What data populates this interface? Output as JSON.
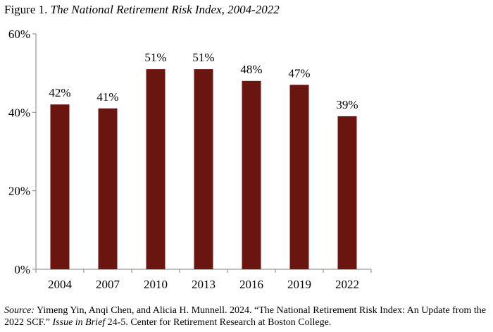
{
  "figure": {
    "label": "Figure 1.",
    "title": "The National Retirement Risk Index, 2004-2022"
  },
  "chart_data": {
    "type": "bar",
    "title": "The National Retirement Risk Index, 2004-2022",
    "xlabel": "",
    "ylabel": "",
    "categories": [
      "2004",
      "2007",
      "2010",
      "2013",
      "2016",
      "2019",
      "2022"
    ],
    "values": [
      42,
      41,
      51,
      51,
      48,
      47,
      39
    ],
    "data_labels": [
      "42%",
      "41%",
      "51%",
      "51%",
      "48%",
      "47%",
      "39%"
    ],
    "ylim": [
      0,
      60
    ],
    "yticks": [
      0,
      20,
      40,
      60
    ],
    "ytick_labels": [
      "0%",
      "20%",
      "40%",
      "60%"
    ],
    "grid": false,
    "legend": "none",
    "bar_color": "#6b1510"
  },
  "source": {
    "label": "Source:",
    "text1": " Yimeng Yin, Anqi Chen, and Alicia H. Munnell. 2024. “The National Retirement Risk Index: An Update from the 2022 SCF.” ",
    "pub": "Issue in Brief",
    "text2": " 24-5. Center for Retirement Research at Boston College."
  }
}
